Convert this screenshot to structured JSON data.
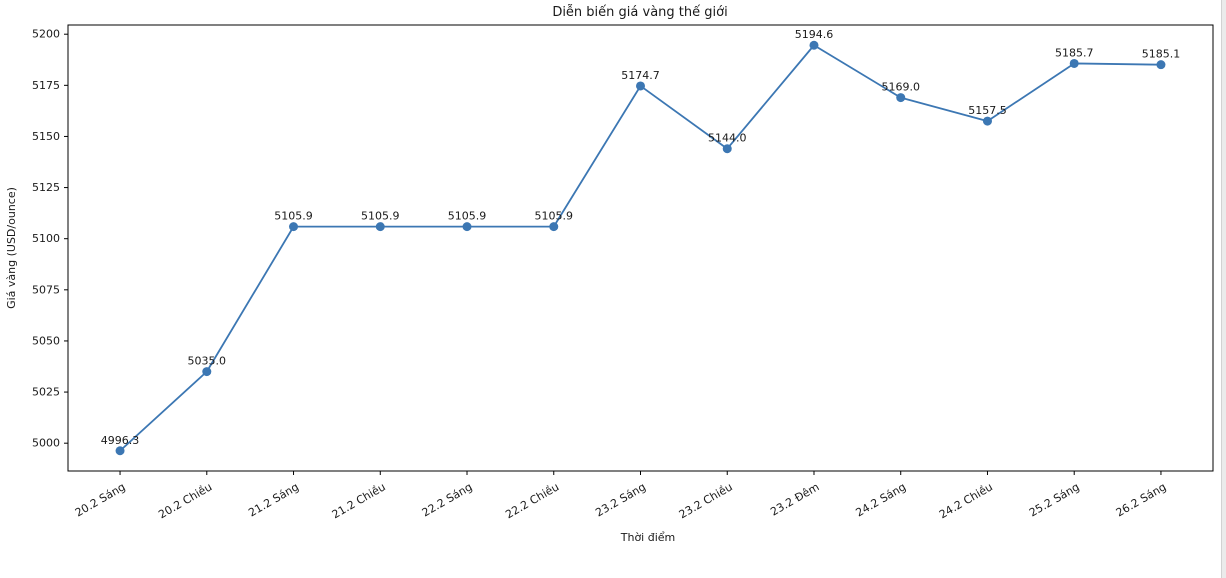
{
  "chart_data": {
    "type": "line",
    "title": "Diễn biến giá vàng thế giới",
    "xlabel": "Thời điểm",
    "ylabel": "Giá vàng (USD/ounce)",
    "categories": [
      "20.2 Sáng",
      "20.2 Chiều",
      "21.2 Sáng",
      "21.2 Chiều",
      "22.2 Sáng",
      "22.2 Chiều",
      "23.2 Sáng",
      "23.2 Chiều",
      "23.2 Đêm",
      "24.2 Sáng",
      "24.2 Chiều",
      "25.2 Sáng",
      "26.2 Sáng"
    ],
    "values": [
      4996.3,
      5035.0,
      5105.9,
      5105.9,
      5105.9,
      5105.9,
      5174.7,
      5144.0,
      5194.6,
      5169.0,
      5157.5,
      5185.7,
      5185.1
    ],
    "point_labels": [
      "4996.3",
      "5035.0",
      "5105.9",
      "5105.9",
      "5105.9",
      "5105.9",
      "5174.7",
      "5144.0",
      "5194.6",
      "5169.0",
      "5157.5",
      "5185.7",
      "5185.1"
    ],
    "yticks": [
      5000,
      5025,
      5050,
      5075,
      5100,
      5125,
      5150,
      5175,
      5200
    ],
    "ylim": [
      4986.4,
      5204.5
    ],
    "x_tick_rotation_deg": 30,
    "grid": false,
    "legend_position": "none",
    "line_color": "#3c77b3",
    "marker": "circle",
    "text_color": "#1a1a1a",
    "axis_color": "#000000"
  }
}
